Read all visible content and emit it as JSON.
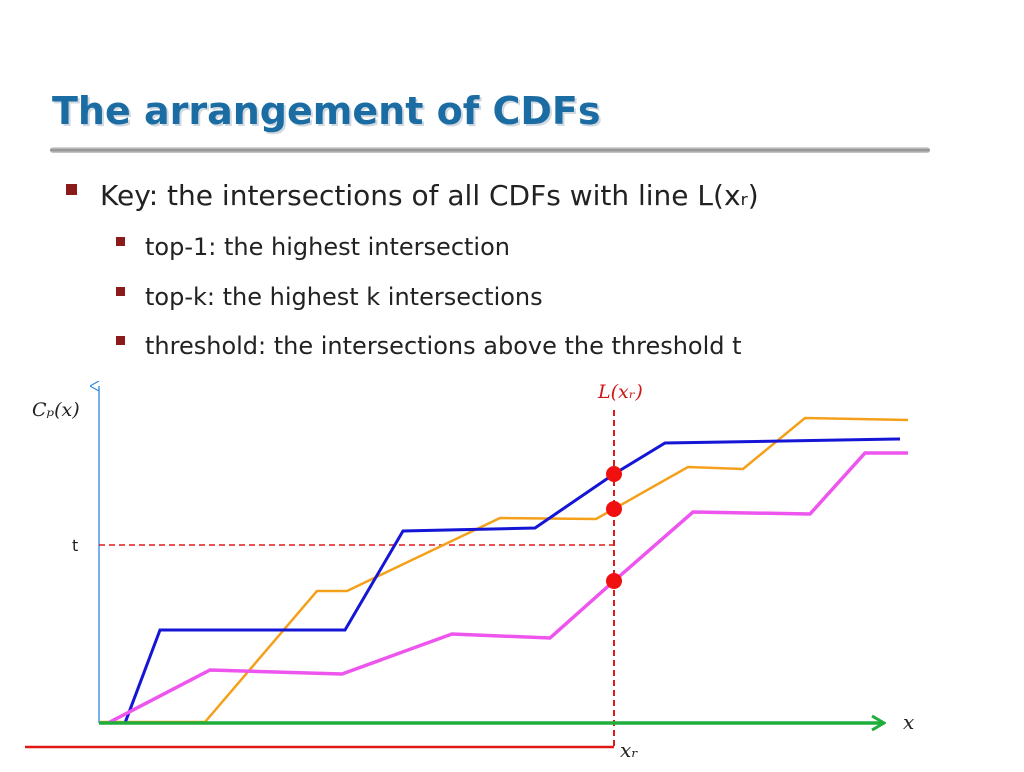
{
  "header": {
    "title": "The arrangement of CDFs"
  },
  "bullets": [
    {
      "text": "Key: the intersections of all CDFs with line L(xᵣ)",
      "sub": [
        "top-1: the highest intersection",
        "top-k: the highest k intersections",
        "threshold: the intersections above the threshold t"
      ]
    }
  ],
  "diagram": {
    "y_axis_label": "Cₚ(x)",
    "x_axis_label": "x",
    "threshold_label": "t",
    "line_label": "L(xᵣ)",
    "xr_label": "xᵣ"
  }
}
